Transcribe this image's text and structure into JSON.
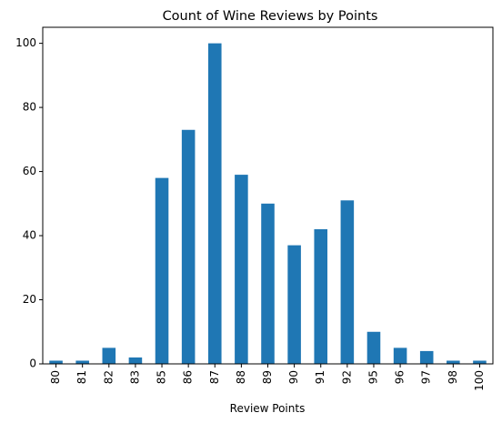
{
  "chart_data": {
    "type": "bar",
    "title": "Count of Wine Reviews by Points",
    "xlabel": "Review Points",
    "ylabel": "",
    "categories": [
      "80",
      "81",
      "82",
      "83",
      "85",
      "86",
      "87",
      "88",
      "89",
      "90",
      "91",
      "92",
      "95",
      "96",
      "97",
      "98",
      "100"
    ],
    "values": [
      1,
      1,
      5,
      2,
      58,
      73,
      100,
      59,
      50,
      37,
      42,
      51,
      10,
      5,
      4,
      1,
      1
    ],
    "ylim": [
      0,
      105
    ],
    "yticks": [
      "0",
      "20",
      "40",
      "60",
      "80",
      "100"
    ],
    "grid": false,
    "legend": "none",
    "bar_color": "#1f77b4"
  }
}
